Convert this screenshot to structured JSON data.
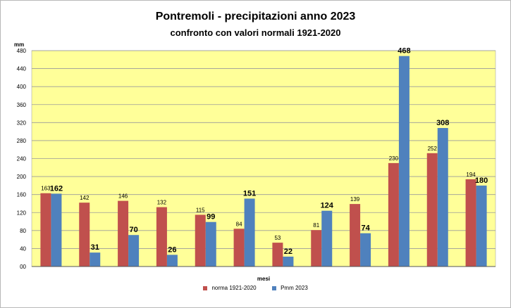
{
  "chart_data": {
    "type": "bar",
    "title": "Pontremoli - precipitazioni anno 2023",
    "subtitle": "confronto con valori normali 1921-2020",
    "ylabel": "mm",
    "xlabel": "mesi",
    "ylim": [
      0,
      480
    ],
    "yticks": [
      "00",
      "40",
      "80",
      "120",
      "160",
      "200",
      "240",
      "280",
      "320",
      "360",
      "400",
      "440",
      "480"
    ],
    "grid": true,
    "legend_position": "bottom",
    "plot_background": "#FFFF99",
    "series": [
      {
        "name": "norma 1921-2020",
        "color": "#C0504D",
        "values": [
          163,
          142,
          146,
          132,
          115,
          84,
          53,
          81,
          139,
          230,
          252,
          194
        ],
        "labels": [
          "163",
          "142",
          "146",
          "132",
          "115",
          "84",
          "53",
          "81",
          "139",
          "230",
          "252",
          "194"
        ]
      },
      {
        "name": "Pmm 2023",
        "color": "#4F81BD",
        "values": [
          162,
          31,
          70,
          26,
          99,
          151,
          22,
          124,
          74,
          468,
          308,
          180
        ],
        "labels": [
          "162",
          "31",
          "70",
          "26",
          "99",
          "151",
          "22",
          "124",
          "74",
          "468",
          "308",
          "180"
        ]
      }
    ]
  }
}
